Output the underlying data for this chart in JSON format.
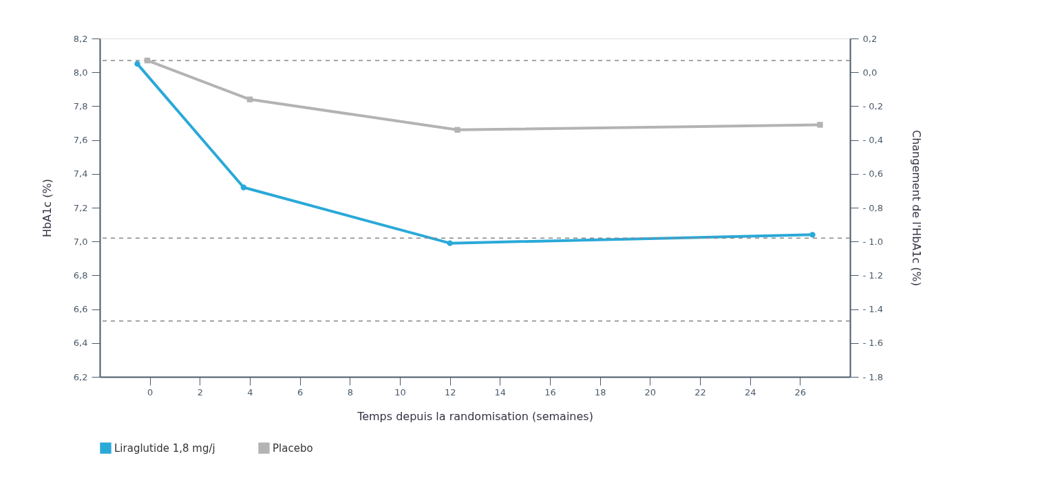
{
  "chart_data": {
    "type": "line",
    "xlabel": "Temps depuis la randomisation (semaines)",
    "ylabel": "HbA1c (%)",
    "y2label": "Changement de l'HbA1c (%)",
    "series": [
      {
        "name": "Liraglutide 1,8 mg/j",
        "color": "#29a9d8",
        "marker": "circle",
        "x": [
          -0.5,
          3.75,
          12.0,
          26.5
        ],
        "values": [
          8.05,
          7.32,
          6.99,
          7.04
        ]
      },
      {
        "name": "Placebo",
        "color": "#b3b3b3",
        "marker": "square",
        "x": [
          -0.1,
          4.0,
          12.3,
          26.8
        ],
        "values": [
          8.07,
          7.84,
          7.66,
          7.69
        ]
      }
    ],
    "xlim": [
      -2,
      28
    ],
    "xticks": [
      0,
      2,
      4,
      6,
      8,
      10,
      12,
      14,
      16,
      18,
      20,
      22,
      24,
      26
    ],
    "ylim": [
      6.2,
      8.2
    ],
    "yticks": [
      {
        "value": 6.2,
        "label": "6,2"
      },
      {
        "value": 6.4,
        "label": "6,4"
      },
      {
        "value": 6.6,
        "label": "6,6"
      },
      {
        "value": 6.8,
        "label": "6,8"
      },
      {
        "value": 7.0,
        "label": "7,0"
      },
      {
        "value": 7.2,
        "label": "7,2"
      },
      {
        "value": 7.4,
        "label": "7,4"
      },
      {
        "value": 7.6,
        "label": "7,6"
      },
      {
        "value": 7.8,
        "label": "7,8"
      },
      {
        "value": 8.0,
        "label": "8,0"
      },
      {
        "value": 8.2,
        "label": "8,2"
      }
    ],
    "y2lim": [
      -1.8,
      0.2
    ],
    "y2ticks": [
      {
        "value": -1.8,
        "label": "- 1.8"
      },
      {
        "value": -1.6,
        "label": "- 1.6"
      },
      {
        "value": -1.4,
        "label": "- 1.4"
      },
      {
        "value": -1.2,
        "label": "- 1.2"
      },
      {
        "value": -1.0,
        "label": "- 1.0"
      },
      {
        "value": -0.8,
        "label": "- 0,8"
      },
      {
        "value": -0.6,
        "label": "- 0,6"
      },
      {
        "value": -0.4,
        "label": "- 0,4"
      },
      {
        "value": -0.2,
        "label": "- 0,2"
      },
      {
        "value": 0.0,
        "label": "0,0"
      },
      {
        "value": 0.2,
        "label": "0,2"
      }
    ],
    "ref_lines": [
      {
        "axis": "y",
        "value": 8.07,
        "color": "#888888",
        "line_style": "dashed"
      },
      {
        "axis": "y",
        "value": 7.02,
        "color": "#888888",
        "line_style": "dashed"
      },
      {
        "axis": "y",
        "value": 6.53,
        "color": "#888888",
        "line_style": "dashed"
      }
    ],
    "grid": false,
    "legend": "bottom",
    "line_style": "solid"
  }
}
